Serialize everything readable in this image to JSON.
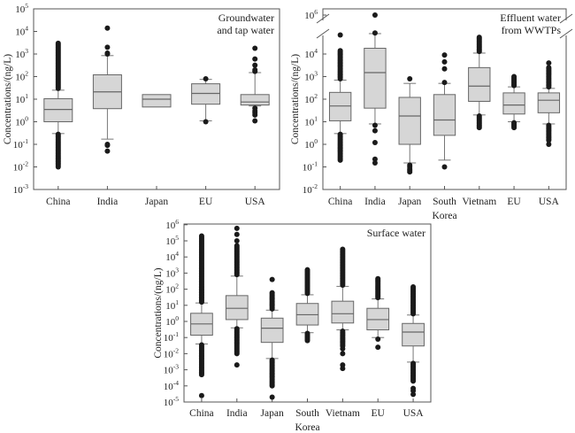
{
  "chart_data": [
    {
      "type": "box",
      "id": "groundwater",
      "title": "Groundwater\nand tap water",
      "title_lines": [
        "Groundwater",
        "and tap water"
      ],
      "xlabel": "",
      "ylabel": "Concentrations/(ng/L)",
      "yscale": "log",
      "ylim_exp": [
        -3,
        5
      ],
      "ytick_exps": [
        -3,
        -2,
        -1,
        0,
        1,
        2,
        3,
        4,
        5
      ],
      "legend": "top-right",
      "categories": [
        "China",
        "India",
        "Japan",
        "EU",
        "USA"
      ],
      "boxes": [
        {
          "name": "China",
          "whisker_low": 0.3,
          "q1": 1.0,
          "median": 3.5,
          "q3": 10.5,
          "whisker_high": 25,
          "outliers_high_range": [
            30,
            3000
          ],
          "outliers_low_range": [
            0.01,
            0.28
          ]
        },
        {
          "name": "India",
          "whisker_low": 0.17,
          "q1": 3.8,
          "median": 21,
          "q3": 120,
          "whisker_high": 850,
          "outliers": [
            14000,
            2000,
            1000,
            1100,
            0.1,
            0.09,
            0.05
          ]
        },
        {
          "name": "Japan",
          "whisker_low": null,
          "q1": 4.5,
          "median": 10,
          "q3": 16,
          "whisker_high": null,
          "outliers": []
        },
        {
          "name": "EU",
          "whisker_low": 1.1,
          "q1": 6,
          "median": 18,
          "q3": 48,
          "whisker_high": 75,
          "outliers": [
            80,
            1.0
          ]
        },
        {
          "name": "USA",
          "whisker_low": 5,
          "q1": 5.5,
          "median": 7.5,
          "q3": 16,
          "whisker_high": 150,
          "outliers": [
            1800,
            600,
            320,
            200,
            170,
            4,
            3,
            2.5,
            2,
            1.1
          ]
        }
      ]
    },
    {
      "type": "box",
      "id": "effluent",
      "title": "Effluent water\nfrom WWTPs",
      "title_lines": [
        "Effluent water",
        "from WWTPs"
      ],
      "xlabel": "",
      "ylabel": "Concentrations/(ng/L)",
      "yscale": "log",
      "ylim_exp": [
        -2,
        6
      ],
      "ytick_exps": [
        -2,
        -1,
        0,
        1,
        2,
        3,
        4,
        6
      ],
      "axis_break": "between 10^4.6 and 10^5.8",
      "legend": "top-right",
      "categories": [
        "China",
        "India",
        "Japan",
        "South Korea",
        "Vietnam",
        "EU",
        "USA"
      ],
      "category_lines": [
        [
          "China"
        ],
        [
          "India"
        ],
        [
          "Japan"
        ],
        [
          "South",
          "Korea"
        ],
        [
          "Vietnam"
        ],
        [
          "EU"
        ],
        [
          "USA"
        ]
      ],
      "boxes": [
        {
          "name": "China",
          "whisker_low": 3,
          "q1": 11,
          "median": 50,
          "q3": 200,
          "whisker_high": 700,
          "outliers_high_range": [
            800,
            14000
          ],
          "outliers_high_extra": [
            70000
          ],
          "outliers_low_range": [
            0.2,
            2.8
          ]
        },
        {
          "name": "India",
          "whisker_low": 8,
          "q1": 40,
          "median": 1500,
          "q3": 18000,
          "whisker_high": 80000,
          "outliers": [
            1000000,
            85000,
            7,
            4,
            1.2,
            0.22,
            0.15
          ]
        },
        {
          "name": "Japan",
          "whisker_low": 0.15,
          "q1": 1,
          "median": 18,
          "q3": 120,
          "whisker_high": 500,
          "outliers": [
            800,
            0.12,
            0.1,
            0.08,
            0.07,
            0.06
          ]
        },
        {
          "name": "South Korea",
          "whisker_low": 0.2,
          "q1": 2.5,
          "median": 12,
          "q3": 160,
          "whisker_high": 500,
          "outliers": [
            9000,
            4500,
            2200,
            550,
            0.1
          ]
        },
        {
          "name": "Vietnam",
          "whisker_low": 20,
          "q1": 80,
          "median": 380,
          "q3": 2500,
          "whisker_high": 11000,
          "outliers_high_range": [
            13000,
            55000
          ],
          "outliers_low_range": [
            5.5,
            18
          ]
        },
        {
          "name": "EU",
          "whisker_low": 10,
          "q1": 22,
          "median": 55,
          "q3": 190,
          "whisker_high": 350,
          "outliers_high_range": [
            400,
            1000
          ],
          "outliers_low_range": [
            5.5,
            9
          ]
        },
        {
          "name": "USA",
          "whisker_low": 8,
          "q1": 25,
          "median": 90,
          "q3": 190,
          "whisker_high": 300,
          "outliers_high_range": [
            350,
            2500
          ],
          "outliers_high_extra": [
            4000
          ],
          "outliers_low_range": [
            1.5,
            7
          ],
          "outliers_low_extra": [
            1
          ]
        }
      ]
    },
    {
      "type": "box",
      "id": "surface",
      "title": "Surface water",
      "title_lines": [
        "Surface water"
      ],
      "xlabel": "",
      "ylabel": "Concentrations/(ng/L)",
      "yscale": "log",
      "ylim_exp": [
        -5,
        6
      ],
      "ytick_exps": [
        -5,
        -4,
        -3,
        -2,
        -1,
        0,
        1,
        2,
        3,
        4,
        5,
        6
      ],
      "legend": "top-right",
      "categories": [
        "China",
        "India",
        "Japan",
        "South Korea",
        "Vietnam",
        "EU",
        "USA"
      ],
      "category_lines": [
        [
          "China"
        ],
        [
          "India"
        ],
        [
          "Japan"
        ],
        [
          "South",
          "Korea"
        ],
        [
          "Vietnam"
        ],
        [
          "EU"
        ],
        [
          "USA"
        ]
      ],
      "boxes": [
        {
          "name": "China",
          "whisker_low": 0.04,
          "q1": 0.14,
          "median": 0.7,
          "q3": 3.2,
          "whisker_high": 14,
          "outliers_high_range": [
            16,
            200000
          ],
          "outliers_low_range": [
            0.0005,
            0.035
          ],
          "outliers_low_extra": [
            2.5e-05
          ]
        },
        {
          "name": "India",
          "whisker_low": 0.4,
          "q1": 1.3,
          "median": 6.5,
          "q3": 40,
          "whisker_high": 650,
          "outliers_high_range": [
            800,
            50000
          ],
          "outliers_high_extra": [
            100000,
            250000,
            600000
          ],
          "outliers_low_range": [
            0.01,
            0.35
          ],
          "outliers_low_extra": [
            0.002
          ]
        },
        {
          "name": "Japan",
          "whisker_low": 0.005,
          "q1": 0.05,
          "median": 0.38,
          "q3": 1.6,
          "whisker_high": 5,
          "outliers_high_range": [
            6,
            60
          ],
          "outliers_high_extra": [
            400
          ],
          "outliers_low_range": [
            0.0001,
            0.004
          ],
          "outliers_low_extra": [
            2e-05
          ]
        },
        {
          "name": "South Korea",
          "whisker_low": 0.2,
          "q1": 0.6,
          "median": 2.6,
          "q3": 13,
          "whisker_high": 45,
          "outliers_high_range": [
            55,
            1600
          ],
          "outliers_low_range": [
            0.065,
            0.18
          ]
        },
        {
          "name": "Vietnam",
          "whisker_low": 0.3,
          "q1": 0.8,
          "median": 3,
          "q3": 18,
          "whisker_high": 150,
          "outliers_high_range": [
            180,
            30000
          ],
          "outliers_low_range": [
            0.03,
            0.25
          ],
          "outliers_low_extra": [
            0.01,
            0.02,
            0.0012,
            0.002
          ]
        },
        {
          "name": "EU",
          "whisker_low": 0.1,
          "q1": 0.3,
          "median": 1.3,
          "q3": 6.5,
          "whisker_high": 25,
          "outliers_high_range": [
            30,
            450
          ],
          "outliers_low_extra": [
            0.08,
            0.025
          ]
        },
        {
          "name": "USA",
          "whisker_low": 0.003,
          "q1": 0.03,
          "median": 0.22,
          "q3": 0.75,
          "whisker_high": 2.5,
          "outliers_high_range": [
            3,
            140
          ],
          "outliers_low_range": [
            0.0002,
            0.0025
          ],
          "outliers_low_extra": [
            7e-05,
            5e-05,
            3e-05
          ]
        }
      ]
    }
  ]
}
